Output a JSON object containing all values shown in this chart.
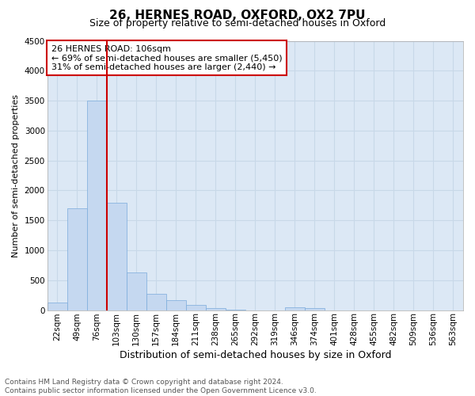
{
  "title": "26, HERNES ROAD, OXFORD, OX2 7PU",
  "subtitle": "Size of property relative to semi-detached houses in Oxford",
  "xlabel": "Distribution of semi-detached houses by size in Oxford",
  "ylabel": "Number of semi-detached properties",
  "annotation_title": "26 HERNES ROAD: 106sqm",
  "annotation_line1": "← 69% of semi-detached houses are smaller (5,450)",
  "annotation_line2": "31% of semi-detached houses are larger (2,440) →",
  "footer1": "Contains HM Land Registry data © Crown copyright and database right 2024.",
  "footer2": "Contains public sector information licensed under the Open Government Licence v3.0.",
  "categories": [
    "22sqm",
    "49sqm",
    "76sqm",
    "103sqm",
    "130sqm",
    "157sqm",
    "184sqm",
    "211sqm",
    "238sqm",
    "265sqm",
    "292sqm",
    "319sqm",
    "346sqm",
    "374sqm",
    "401sqm",
    "428sqm",
    "455sqm",
    "482sqm",
    "509sqm",
    "536sqm",
    "563sqm"
  ],
  "values": [
    130,
    1700,
    3500,
    1800,
    630,
    270,
    160,
    90,
    30,
    5,
    0,
    0,
    50,
    30,
    0,
    0,
    0,
    0,
    0,
    0,
    0
  ],
  "bar_color": "#c5d8f0",
  "bar_edge_color": "#7aabdc",
  "vline_color": "#cc0000",
  "vline_x_index": 3,
  "annotation_box_color": "#cc0000",
  "ylim": [
    0,
    4500
  ],
  "yticks": [
    0,
    500,
    1000,
    1500,
    2000,
    2500,
    3000,
    3500,
    4000,
    4500
  ],
  "grid_color": "#c8d8e8",
  "background_color": "#ffffff",
  "plot_bg_color": "#dce8f5",
  "title_fontsize": 11,
  "subtitle_fontsize": 9,
  "xlabel_fontsize": 9,
  "ylabel_fontsize": 8,
  "tick_fontsize": 7.5,
  "annotation_fontsize": 8,
  "footer_fontsize": 6.5
}
